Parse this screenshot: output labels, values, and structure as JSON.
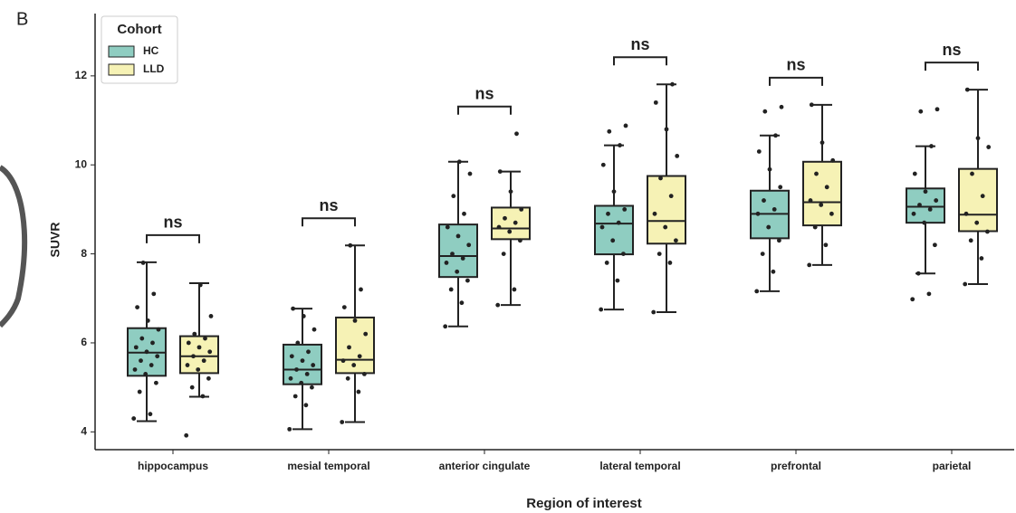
{
  "panel_label": "B",
  "chart_data": {
    "type": "box",
    "xlabel": "Region of interest",
    "ylabel": "SUVR",
    "categories": [
      "hippocampus",
      "mesial temporal",
      "anterior cingulate",
      "lateral temporal",
      "prefrontal",
      "parietal"
    ],
    "annotations": [
      "ns",
      "ns",
      "ns",
      "ns",
      "ns",
      "ns"
    ],
    "ylim": [
      3.6,
      13.4
    ],
    "yticks": [
      4,
      6,
      8,
      10,
      12
    ],
    "legend": {
      "title": "Cohort",
      "position": "upper left"
    },
    "series": [
      {
        "name": "HC",
        "color": "#8fcdc1",
        "boxes": [
          {
            "min": 4.24,
            "q1": 5.26,
            "median": 5.78,
            "q3": 6.33,
            "max": 7.81,
            "points": [
              4.3,
              4.4,
              4.9,
              5.1,
              5.3,
              5.4,
              5.5,
              5.6,
              5.7,
              5.8,
              5.9,
              6.0,
              6.1,
              6.3,
              6.5,
              6.8,
              7.1,
              7.8
            ]
          },
          {
            "min": 4.06,
            "q1": 5.07,
            "median": 5.4,
            "q3": 5.96,
            "max": 6.77,
            "points": [
              4.06,
              4.6,
              4.8,
              5.0,
              5.1,
              5.2,
              5.3,
              5.4,
              5.5,
              5.6,
              5.7,
              5.8,
              6.0,
              6.3,
              6.6,
              6.77
            ]
          },
          {
            "min": 6.37,
            "q1": 7.48,
            "median": 7.95,
            "q3": 8.66,
            "max": 10.07,
            "points": [
              6.37,
              6.9,
              7.2,
              7.4,
              7.6,
              7.8,
              7.9,
              8.0,
              8.2,
              8.4,
              8.6,
              8.9,
              9.3,
              9.8,
              10.07
            ]
          },
          {
            "min": 6.75,
            "q1": 7.99,
            "median": 8.68,
            "q3": 9.08,
            "max": 10.44,
            "points": [
              6.75,
              7.4,
              7.8,
              8.0,
              8.3,
              8.6,
              8.7,
              8.9,
              9.0,
              9.4,
              10.0,
              10.44,
              10.75,
              10.88
            ]
          },
          {
            "min": 7.16,
            "q1": 8.35,
            "median": 8.9,
            "q3": 9.42,
            "max": 10.66,
            "points": [
              7.16,
              7.6,
              8.0,
              8.3,
              8.6,
              8.9,
              9.0,
              9.2,
              9.5,
              9.9,
              10.3,
              10.66,
              11.2,
              11.3
            ]
          },
          {
            "min": 7.56,
            "q1": 8.7,
            "median": 9.06,
            "q3": 9.47,
            "max": 10.42,
            "points": [
              6.98,
              7.1,
              7.56,
              8.2,
              8.7,
              8.9,
              9.0,
              9.1,
              9.2,
              9.4,
              9.8,
              10.42,
              11.2,
              11.25
            ]
          }
        ]
      },
      {
        "name": "LLD",
        "color": "#f6f2b5",
        "boxes": [
          {
            "min": 4.79,
            "q1": 5.32,
            "median": 5.7,
            "q3": 6.15,
            "max": 7.34,
            "points": [
              3.92,
              4.8,
              5.0,
              5.2,
              5.4,
              5.5,
              5.6,
              5.7,
              5.8,
              5.9,
              6.0,
              6.1,
              6.2,
              6.6,
              7.3
            ]
          },
          {
            "min": 4.22,
            "q1": 5.32,
            "median": 5.62,
            "q3": 6.57,
            "max": 8.19,
            "points": [
              4.22,
              4.9,
              5.2,
              5.3,
              5.5,
              5.6,
              5.7,
              5.9,
              6.2,
              6.5,
              6.8,
              7.2,
              8.19
            ]
          },
          {
            "min": 6.85,
            "q1": 8.33,
            "median": 8.57,
            "q3": 9.04,
            "max": 9.85,
            "points": [
              6.85,
              7.2,
              8.0,
              8.3,
              8.5,
              8.6,
              8.7,
              8.8,
              9.0,
              9.4,
              9.85,
              10.7
            ]
          },
          {
            "min": 6.69,
            "q1": 8.23,
            "median": 8.74,
            "q3": 9.75,
            "max": 11.81,
            "points": [
              6.69,
              7.8,
              8.0,
              8.3,
              8.6,
              8.9,
              9.3,
              9.7,
              10.2,
              10.8,
              11.4,
              11.81
            ]
          },
          {
            "min": 7.75,
            "q1": 8.64,
            "median": 9.16,
            "q3": 10.07,
            "max": 11.35,
            "points": [
              7.75,
              8.2,
              8.6,
              8.9,
              9.1,
              9.2,
              9.5,
              9.8,
              10.1,
              10.5,
              11.35
            ]
          },
          {
            "min": 7.32,
            "q1": 8.51,
            "median": 8.88,
            "q3": 9.91,
            "max": 11.69,
            "points": [
              7.32,
              7.9,
              8.3,
              8.5,
              8.7,
              8.9,
              9.3,
              9.8,
              10.4,
              10.6,
              11.69
            ]
          }
        ]
      }
    ]
  }
}
